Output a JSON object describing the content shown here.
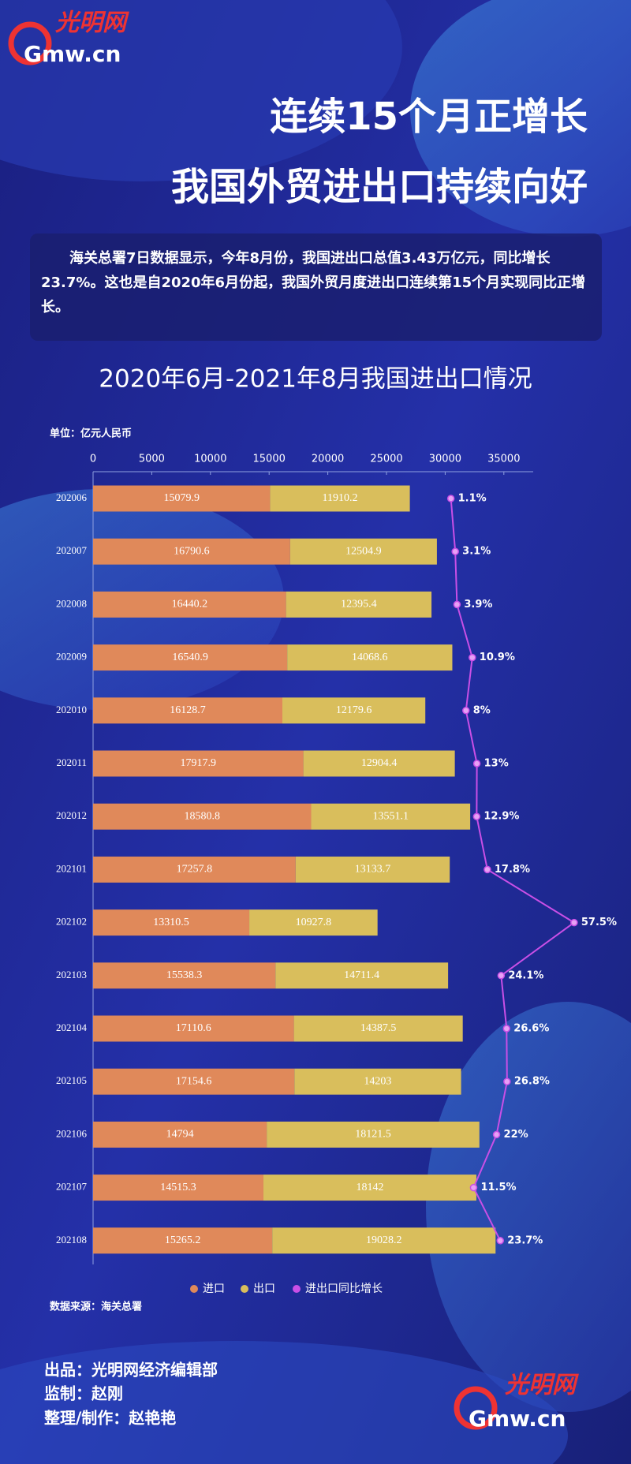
{
  "logo": {
    "script": "光明网",
    "domain": "Gmw.cn"
  },
  "header": {
    "title_lines": [
      "连续15个月正增长",
      "我国外贸进出口持续向好"
    ]
  },
  "intro": "海关总署7日数据显示，今年8月份，我国进出口总值3.43万亿元，同比增长23.7%。这也是自2020年6月份起，我国外贸月度进出口连续第15个月实现同比正增长。",
  "chart_data": {
    "type": "bar",
    "orientation": "horizontal",
    "stacked": true,
    "title": "2020年6月-2021年8月我国进出口情况",
    "unit_label": "单位：亿元人民币",
    "categories": [
      "202006",
      "202007",
      "202008",
      "202009",
      "202010",
      "202011",
      "202012",
      "202101",
      "202102",
      "202103",
      "202104",
      "202105",
      "202106",
      "202107",
      "202108"
    ],
    "series": [
      {
        "name": "进口",
        "color": "#e0895a",
        "values": [
          15079.9,
          16790.6,
          16440.2,
          16540.9,
          16128.7,
          17917.9,
          18580.8,
          17257.8,
          13310.5,
          15538.3,
          17110.6,
          17154.6,
          14794,
          14515.3,
          15265.2
        ]
      },
      {
        "name": "出口",
        "color": "#d9be5c",
        "values": [
          11910.2,
          12504.9,
          12395.4,
          14068.6,
          12179.6,
          12904.4,
          13551.1,
          13133.7,
          10927.8,
          14711.4,
          14387.5,
          14203,
          18121.5,
          18142,
          19028.2
        ]
      },
      {
        "name": "进出口同比增长",
        "type": "line",
        "color": "#c94fe6",
        "values": [
          1.1,
          3.1,
          3.9,
          10.9,
          8,
          13,
          12.9,
          17.8,
          57.5,
          24.1,
          26.6,
          26.8,
          22,
          11.5,
          23.7
        ],
        "value_labels": [
          "1.1%",
          "3.1%",
          "3.9%",
          "10.9%",
          "8%",
          "13%",
          "12.9%",
          "17.8%",
          "57.5%",
          "24.1%",
          "26.6%",
          "26.8%",
          "22%",
          "11.5%",
          "23.7%"
        ]
      }
    ],
    "xlim": [
      0,
      37500
    ],
    "xticks": [
      0,
      5000,
      10000,
      15000,
      20000,
      25000,
      30000,
      35000
    ],
    "source": "数据来源：海关总署"
  },
  "credits": [
    "出品：光明网经济编辑部",
    "监制：赵刚",
    "整理/制作：赵艳艳"
  ]
}
